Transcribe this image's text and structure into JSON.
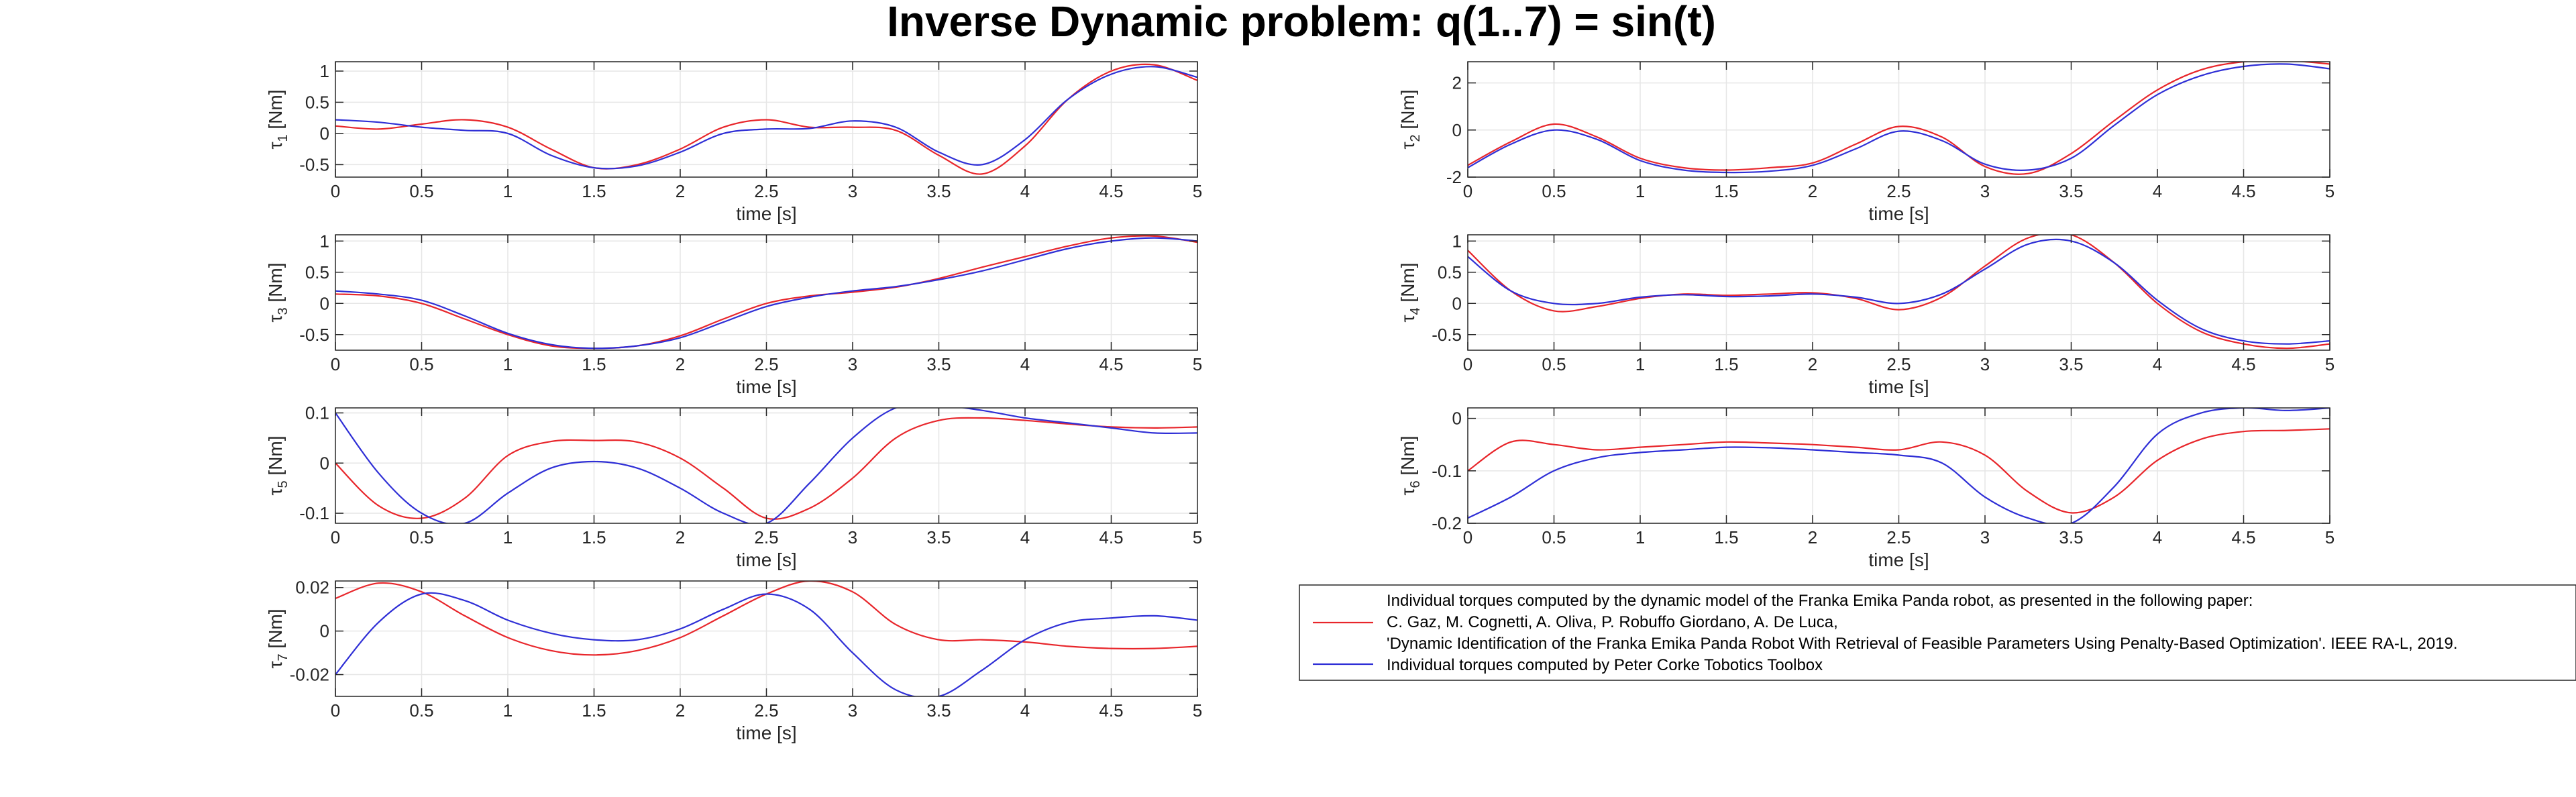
{
  "figure_title": "Inverse Dynamic problem: q(1..7) = sin(t)",
  "colors": {
    "gaz": "#e8262b",
    "corke": "#2f2fd6",
    "axis": "#262626",
    "grid": "#e6e6e6"
  },
  "legend": {
    "gaz_lines": [
      "Individual torques computed by the dynamic model of the Franka Emika Panda robot, as presented in the following paper:",
      "C. Gaz, M. Cognetti, A. Oliva, P. Robuffo Giordano, A. De Luca,",
      "'Dynamic Identification of the Franka Emika Panda Robot With Retrieval of Feasible Parameters Using Penalty-Based Optimization'. IEEE RA-L, 2019."
    ],
    "corke_label": "Individual torques computed by Peter Corke Tobotics Toolbox"
  },
  "chart_data": [
    {
      "type": "line",
      "id": "tau1",
      "xlabel": "time [s]",
      "ylabel_sub": "1",
      "xlim": [
        0,
        5
      ],
      "ylim": [
        -0.7,
        1.15
      ],
      "xticks": [
        0,
        0.5,
        1,
        1.5,
        2,
        2.5,
        3,
        3.5,
        4,
        4.5,
        5
      ],
      "yticks": [
        -0.5,
        0,
        0.5,
        1
      ],
      "ytick_labels": [
        "-0.5",
        "0",
        "0.5",
        "1"
      ],
      "x": [
        0,
        0.25,
        0.5,
        0.75,
        1,
        1.25,
        1.5,
        1.75,
        2,
        2.25,
        2.5,
        2.75,
        3,
        3.25,
        3.5,
        3.75,
        4,
        4.25,
        4.5,
        4.75,
        5
      ],
      "series": [
        {
          "values": [
            0.12,
            0.07,
            0.15,
            0.22,
            0.1,
            -0.25,
            -0.55,
            -0.5,
            -0.25,
            0.1,
            0.22,
            0.1,
            0.1,
            0.05,
            -0.35,
            -0.65,
            -0.2,
            0.55,
            1.0,
            1.1,
            0.85
          ]
        },
        {
          "values": [
            0.22,
            0.18,
            0.1,
            0.05,
            0.0,
            -0.35,
            -0.55,
            -0.52,
            -0.3,
            0.0,
            0.07,
            0.08,
            0.2,
            0.1,
            -0.3,
            -0.5,
            -0.1,
            0.55,
            0.95,
            1.07,
            0.9
          ]
        }
      ]
    },
    {
      "type": "line",
      "id": "tau2",
      "xlabel": "time [s]",
      "ylabel_sub": "2",
      "xlim": [
        0,
        5
      ],
      "ylim": [
        -2,
        2.9
      ],
      "xticks": [
        0,
        0.5,
        1,
        1.5,
        2,
        2.5,
        3,
        3.5,
        4,
        4.5,
        5
      ],
      "yticks": [
        -2,
        0,
        2
      ],
      "ytick_labels": [
        "-2",
        "0",
        "2"
      ],
      "x": [
        0,
        0.25,
        0.5,
        0.75,
        1,
        1.25,
        1.5,
        1.75,
        2,
        2.25,
        2.5,
        2.75,
        3,
        3.25,
        3.5,
        3.75,
        4,
        4.25,
        4.5,
        4.75,
        5
      ],
      "series": [
        {
          "values": [
            -1.5,
            -0.5,
            0.25,
            -0.3,
            -1.2,
            -1.6,
            -1.7,
            -1.6,
            -1.4,
            -0.6,
            0.15,
            -0.3,
            -1.55,
            -1.85,
            -1.0,
            0.4,
            1.7,
            2.55,
            2.9,
            2.95,
            2.8
          ]
        },
        {
          "values": [
            -1.6,
            -0.6,
            0.0,
            -0.4,
            -1.3,
            -1.7,
            -1.8,
            -1.75,
            -1.5,
            -0.8,
            -0.05,
            -0.45,
            -1.45,
            -1.7,
            -1.2,
            0.2,
            1.5,
            2.3,
            2.7,
            2.8,
            2.6
          ]
        }
      ]
    },
    {
      "type": "line",
      "id": "tau3",
      "xlabel": "time [s]",
      "ylabel_sub": "3",
      "xlim": [
        0,
        5
      ],
      "ylim": [
        -0.75,
        1.1
      ],
      "xticks": [
        0,
        0.5,
        1,
        1.5,
        2,
        2.5,
        3,
        3.5,
        4,
        4.5,
        5
      ],
      "yticks": [
        -0.5,
        0,
        0.5,
        1
      ],
      "ytick_labels": [
        "-0.5",
        "0",
        "0.5",
        "1"
      ],
      "x": [
        0,
        0.25,
        0.5,
        0.75,
        1,
        1.25,
        1.5,
        1.75,
        2,
        2.25,
        2.5,
        2.75,
        3,
        3.25,
        3.5,
        3.75,
        4,
        4.25,
        4.5,
        4.75,
        5
      ],
      "series": [
        {
          "values": [
            0.15,
            0.12,
            0.0,
            -0.25,
            -0.5,
            -0.68,
            -0.72,
            -0.68,
            -0.52,
            -0.25,
            0.0,
            0.12,
            0.18,
            0.26,
            0.4,
            0.58,
            0.75,
            0.92,
            1.05,
            1.08,
            0.98
          ]
        },
        {
          "values": [
            0.2,
            0.15,
            0.05,
            -0.2,
            -0.48,
            -0.66,
            -0.72,
            -0.68,
            -0.55,
            -0.3,
            -0.05,
            0.1,
            0.2,
            0.27,
            0.38,
            0.52,
            0.7,
            0.88,
            1.0,
            1.05,
            1.0
          ]
        }
      ]
    },
    {
      "type": "line",
      "id": "tau4",
      "xlabel": "time [s]",
      "ylabel_sub": "4",
      "xlim": [
        0,
        5
      ],
      "ylim": [
        -0.75,
        1.1
      ],
      "xticks": [
        0,
        0.5,
        1,
        1.5,
        2,
        2.5,
        3,
        3.5,
        4,
        4.5,
        5
      ],
      "yticks": [
        -0.5,
        0,
        0.5,
        1
      ],
      "ytick_labels": [
        "-0.5",
        "0",
        "0.5",
        "1"
      ],
      "x": [
        0,
        0.25,
        0.5,
        0.75,
        1,
        1.25,
        1.5,
        1.75,
        2,
        2.25,
        2.5,
        2.75,
        3,
        3.25,
        3.5,
        3.75,
        4,
        4.25,
        4.5,
        4.75,
        5
      ],
      "series": [
        {
          "values": [
            0.85,
            0.2,
            -0.12,
            -0.05,
            0.08,
            0.15,
            0.13,
            0.15,
            0.17,
            0.08,
            -0.1,
            0.1,
            0.6,
            1.05,
            1.1,
            0.65,
            0.0,
            -0.45,
            -0.65,
            -0.72,
            -0.65
          ]
        },
        {
          "values": [
            0.75,
            0.2,
            0.0,
            0.0,
            0.1,
            0.14,
            0.11,
            0.12,
            0.15,
            0.1,
            0.0,
            0.15,
            0.55,
            0.95,
            1.0,
            0.65,
            0.05,
            -0.4,
            -0.6,
            -0.65,
            -0.6
          ]
        }
      ]
    },
    {
      "type": "line",
      "id": "tau5",
      "xlabel": "time [s]",
      "ylabel_sub": "5",
      "xlim": [
        0,
        5
      ],
      "ylim": [
        -0.12,
        0.11
      ],
      "xticks": [
        0,
        0.5,
        1,
        1.5,
        2,
        2.5,
        3,
        3.5,
        4,
        4.5,
        5
      ],
      "yticks": [
        -0.1,
        0,
        0.1
      ],
      "ytick_labels": [
        "-0.1",
        "0",
        "0.1"
      ],
      "x": [
        0,
        0.25,
        0.5,
        0.75,
        1,
        1.25,
        1.5,
        1.75,
        2,
        2.25,
        2.5,
        2.75,
        3,
        3.25,
        3.5,
        3.75,
        4,
        4.25,
        4.5,
        4.75,
        5
      ],
      "series": [
        {
          "values": [
            0.0,
            -0.085,
            -0.11,
            -0.07,
            0.015,
            0.043,
            0.045,
            0.042,
            0.01,
            -0.05,
            -0.11,
            -0.09,
            -0.03,
            0.05,
            0.085,
            0.09,
            0.085,
            0.078,
            0.072,
            0.07,
            0.072
          ]
        },
        {
          "values": [
            0.1,
            -0.02,
            -0.1,
            -0.12,
            -0.06,
            -0.01,
            0.003,
            -0.01,
            -0.05,
            -0.1,
            -0.12,
            -0.04,
            0.05,
            0.11,
            0.115,
            0.105,
            0.09,
            0.08,
            0.07,
            0.06,
            0.06
          ]
        }
      ]
    },
    {
      "type": "line",
      "id": "tau6",
      "xlabel": "time [s]",
      "ylabel_sub": "6",
      "xlim": [
        0,
        5
      ],
      "ylim": [
        -0.2,
        0.02
      ],
      "xticks": [
        0,
        0.5,
        1,
        1.5,
        2,
        2.5,
        3,
        3.5,
        4,
        4.5,
        5
      ],
      "yticks": [
        -0.2,
        -0.1,
        0
      ],
      "ytick_labels": [
        "-0.2",
        "-0.1",
        "0"
      ],
      "x": [
        0,
        0.25,
        0.5,
        0.75,
        1,
        1.25,
        1.5,
        1.75,
        2,
        2.25,
        2.5,
        2.75,
        3,
        3.25,
        3.5,
        3.75,
        4,
        4.25,
        4.5,
        4.75,
        5
      ],
      "series": [
        {
          "values": [
            -0.1,
            -0.045,
            -0.05,
            -0.06,
            -0.055,
            -0.05,
            -0.045,
            -0.047,
            -0.05,
            -0.055,
            -0.06,
            -0.045,
            -0.07,
            -0.14,
            -0.18,
            -0.15,
            -0.08,
            -0.04,
            -0.025,
            -0.023,
            -0.02
          ]
        },
        {
          "values": [
            -0.19,
            -0.15,
            -0.1,
            -0.075,
            -0.065,
            -0.06,
            -0.055,
            -0.056,
            -0.06,
            -0.065,
            -0.07,
            -0.085,
            -0.15,
            -0.19,
            -0.2,
            -0.13,
            -0.03,
            0.01,
            0.02,
            0.015,
            0.02
          ]
        }
      ]
    },
    {
      "type": "line",
      "id": "tau7",
      "xlabel": "time [s]",
      "ylabel_sub": "7",
      "xlim": [
        0,
        5
      ],
      "ylim": [
        -0.03,
        0.023
      ],
      "xticks": [
        0,
        0.5,
        1,
        1.5,
        2,
        2.5,
        3,
        3.5,
        4,
        4.5,
        5
      ],
      "yticks": [
        -0.02,
        0,
        0.02
      ],
      "ytick_labels": [
        "-0.02",
        "0",
        "0.02"
      ],
      "x": [
        0,
        0.25,
        0.5,
        0.75,
        1,
        1.25,
        1.5,
        1.75,
        2,
        2.25,
        2.5,
        2.75,
        3,
        3.25,
        3.5,
        3.75,
        4,
        4.25,
        4.5,
        4.75,
        5
      ],
      "series": [
        {
          "values": [
            0.015,
            0.022,
            0.018,
            0.007,
            -0.003,
            -0.009,
            -0.011,
            -0.009,
            -0.003,
            0.007,
            0.017,
            0.023,
            0.018,
            0.003,
            -0.004,
            -0.004,
            -0.005,
            -0.007,
            -0.008,
            -0.008,
            -0.007
          ]
        },
        {
          "values": [
            -0.02,
            0.004,
            0.017,
            0.014,
            0.005,
            -0.001,
            -0.004,
            -0.004,
            0.001,
            0.01,
            0.017,
            0.01,
            -0.01,
            -0.027,
            -0.03,
            -0.018,
            -0.004,
            0.004,
            0.006,
            0.007,
            0.005
          ]
        }
      ]
    }
  ]
}
